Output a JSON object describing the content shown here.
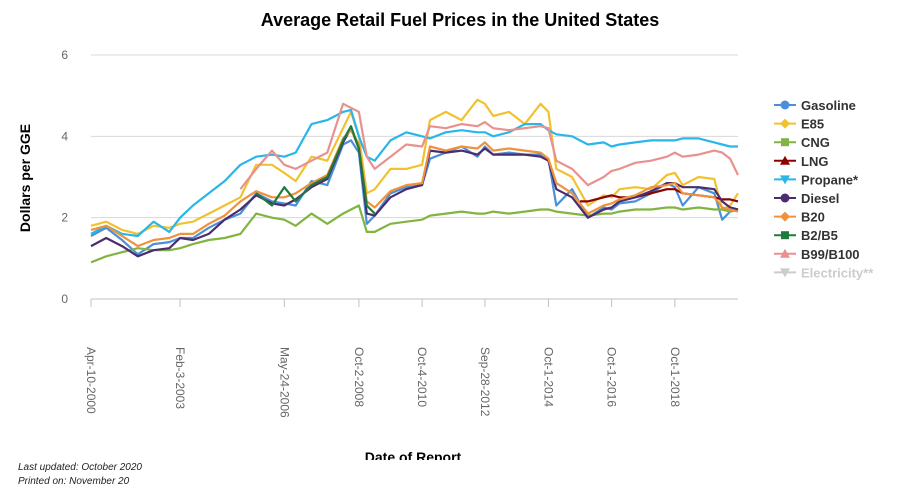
{
  "footer": {
    "updated": "Last updated: October 2020",
    "printed": "Printed on: November 20"
  },
  "chart_data": {
    "type": "line",
    "title": "Average Retail Fuel Prices in the United States",
    "xlabel": "Date of Report",
    "ylabel": "Dollars per GGE",
    "ylim": [
      0,
      6
    ],
    "xlim": [
      2000.27,
      2020.75
    ],
    "yticks": [
      "0",
      "2",
      "4",
      "6"
    ],
    "xticks": [
      {
        "label": "Apr-10-2000",
        "x": 2000.27
      },
      {
        "label": "Feb-3-2003",
        "x": 2003.09
      },
      {
        "label": "May-24-2006",
        "x": 2006.39
      },
      {
        "label": "Oct-2-2008",
        "x": 2008.75
      },
      {
        "label": "Oct-4-2010",
        "x": 2010.75
      },
      {
        "label": "Sep-28-2012",
        "x": 2012.74
      },
      {
        "label": "Oct-1-2014",
        "x": 2014.75
      },
      {
        "label": "Oct-1-2016",
        "x": 2016.75
      },
      {
        "label": "Oct-1-2018",
        "x": 2018.75
      }
    ],
    "grid": true,
    "legend_position": "right",
    "series": [
      {
        "name": "Gasoline",
        "color": "#4a90d9",
        "marker": "circle",
        "x": [
          2000.27,
          2000.75,
          2001.25,
          2001.75,
          2002.25,
          2002.75,
          2003.09,
          2003.5,
          2004.0,
          2004.5,
          2005.0,
          2005.5,
          2006.0,
          2006.39,
          2006.75,
          2007.25,
          2007.75,
          2008.25,
          2008.5,
          2008.75,
          2009.0,
          2009.25,
          2009.75,
          2010.25,
          2010.75,
          2011.0,
          2011.5,
          2012.0,
          2012.5,
          2012.74,
          2013.0,
          2013.5,
          2014.0,
          2014.5,
          2014.75,
          2015.0,
          2015.5,
          2016.0,
          2016.5,
          2016.75,
          2017.0,
          2017.5,
          2018.0,
          2018.5,
          2018.75,
          2019.0,
          2019.5,
          2020.0,
          2020.25,
          2020.5,
          2020.75
        ],
        "y": [
          1.55,
          1.75,
          1.45,
          1.1,
          1.35,
          1.4,
          1.5,
          1.5,
          1.75,
          1.95,
          2.1,
          2.6,
          2.4,
          2.35,
          2.3,
          2.9,
          2.8,
          3.8,
          3.9,
          3.6,
          1.85,
          2.05,
          2.6,
          2.75,
          2.8,
          3.45,
          3.6,
          3.75,
          3.5,
          3.75,
          3.55,
          3.6,
          3.55,
          3.55,
          3.45,
          2.3,
          2.7,
          2.0,
          2.25,
          2.2,
          2.35,
          2.4,
          2.6,
          2.85,
          2.75,
          2.3,
          2.75,
          2.6,
          1.95,
          2.15,
          2.2
        ]
      },
      {
        "name": "E85",
        "color": "#f2c12e",
        "marker": "diamond",
        "x": [
          2000.27,
          2000.75,
          2001.25,
          2001.75,
          2002.25,
          2002.75,
          2003.09,
          2003.5,
          2004.0,
          2004.5,
          2005.0,
          2005.5,
          2006.0,
          2006.39,
          2006.75,
          2007.25,
          2007.75,
          2008.25,
          2008.5,
          2008.75,
          2009.0,
          2009.25,
          2009.75,
          2010.25,
          2010.75,
          2011.0,
          2011.5,
          2012.0,
          2012.5,
          2012.74,
          2013.0,
          2013.5,
          2014.0,
          2014.5,
          2014.75,
          2015.0,
          2015.5,
          2016.0,
          2016.5,
          2016.75,
          2017.0,
          2017.5,
          2018.0,
          2018.5,
          2018.75,
          2019.0,
          2019.5,
          2020.0,
          2020.25,
          2020.5,
          2020.75
        ],
        "y": [
          1.8,
          1.9,
          1.7,
          1.6,
          1.8,
          1.75,
          1.85,
          1.9,
          2.1,
          2.3,
          2.5,
          3.3,
          3.3,
          3.1,
          2.9,
          3.5,
          3.4,
          4.2,
          4.6,
          4.0,
          2.6,
          2.7,
          3.2,
          3.2,
          3.3,
          4.4,
          4.6,
          4.4,
          4.9,
          4.8,
          4.5,
          4.6,
          4.3,
          4.8,
          4.6,
          3.2,
          3.0,
          2.3,
          2.55,
          2.5,
          2.7,
          2.75,
          2.7,
          3.05,
          3.1,
          2.8,
          3.0,
          2.95,
          2.2,
          2.3,
          2.6
        ]
      },
      {
        "name": "CNG",
        "color": "#82b441",
        "marker": "square",
        "x": [
          2000.27,
          2000.75,
          2001.25,
          2001.75,
          2002.25,
          2002.75,
          2003.09,
          2003.5,
          2004.0,
          2004.5,
          2005.0,
          2005.5,
          2006.0,
          2006.39,
          2006.75,
          2007.25,
          2007.75,
          2008.25,
          2008.5,
          2008.75,
          2009.0,
          2009.25,
          2009.75,
          2010.25,
          2010.75,
          2011.0,
          2011.5,
          2012.0,
          2012.5,
          2012.74,
          2013.0,
          2013.5,
          2014.0,
          2014.5,
          2014.75,
          2015.0,
          2015.5,
          2016.0,
          2016.5,
          2016.75,
          2017.0,
          2017.5,
          2018.0,
          2018.5,
          2018.75,
          2019.0,
          2019.5,
          2020.0,
          2020.25,
          2020.5,
          2020.75
        ],
        "y": [
          0.9,
          1.05,
          1.15,
          1.25,
          1.2,
          1.2,
          1.25,
          1.35,
          1.45,
          1.5,
          1.6,
          2.1,
          2.0,
          1.95,
          1.8,
          2.1,
          1.85,
          2.1,
          2.2,
          2.3,
          1.65,
          1.65,
          1.85,
          1.9,
          1.95,
          2.05,
          2.1,
          2.15,
          2.1,
          2.1,
          2.15,
          2.1,
          2.15,
          2.2,
          2.2,
          2.15,
          2.1,
          2.05,
          2.1,
          2.1,
          2.15,
          2.2,
          2.2,
          2.25,
          2.25,
          2.2,
          2.25,
          2.2,
          2.2,
          2.15,
          2.2
        ]
      },
      {
        "name": "LNG",
        "color": "#8b0000",
        "marker": "triangle",
        "x": [
          2015.75,
          2016.0,
          2016.5,
          2016.75,
          2017.0,
          2017.5,
          2018.0,
          2018.5,
          2018.75,
          2019.0,
          2019.5,
          2020.0,
          2020.25,
          2020.5,
          2020.75
        ],
        "y": [
          2.4,
          2.4,
          2.5,
          2.55,
          2.5,
          2.5,
          2.6,
          2.7,
          2.7,
          2.6,
          2.55,
          2.5,
          2.45,
          2.45,
          2.4
        ]
      },
      {
        "name": "Propane*",
        "color": "#29b6e8",
        "marker": "triangle-down",
        "x": [
          2000.27,
          2000.75,
          2001.25,
          2001.75,
          2002.25,
          2002.75,
          2003.09,
          2003.5,
          2004.0,
          2004.5,
          2005.0,
          2005.5,
          2006.0,
          2006.39,
          2006.75,
          2007.25,
          2007.75,
          2008.25,
          2008.5,
          2008.75,
          2009.0,
          2009.25,
          2009.75,
          2010.25,
          2010.75,
          2011.0,
          2011.5,
          2012.0,
          2012.5,
          2012.74,
          2013.0,
          2013.5,
          2014.0,
          2014.5,
          2014.75,
          2015.0,
          2015.5,
          2016.0,
          2016.5,
          2016.75,
          2017.0,
          2017.5,
          2018.0,
          2018.5,
          2018.75,
          2019.0,
          2019.5,
          2020.0,
          2020.25,
          2020.5,
          2020.75
        ],
        "y": [
          1.6,
          1.8,
          1.6,
          1.55,
          1.9,
          1.65,
          2.0,
          2.3,
          2.6,
          2.9,
          3.3,
          3.5,
          3.55,
          3.5,
          3.6,
          4.3,
          4.4,
          4.6,
          4.65,
          4.0,
          3.5,
          3.4,
          3.9,
          4.1,
          4.0,
          3.95,
          4.1,
          4.15,
          4.1,
          4.1,
          4.0,
          4.1,
          4.3,
          4.3,
          4.15,
          4.05,
          4.0,
          3.8,
          3.85,
          3.75,
          3.8,
          3.85,
          3.9,
          3.9,
          3.9,
          3.95,
          3.95,
          3.85,
          3.8,
          3.75,
          3.75
        ]
      },
      {
        "name": "Diesel",
        "color": "#4b2c6f",
        "marker": "circle",
        "x": [
          2000.27,
          2000.75,
          2001.25,
          2001.75,
          2002.25,
          2002.75,
          2003.09,
          2003.5,
          2004.0,
          2004.5,
          2005.0,
          2005.5,
          2006.0,
          2006.39,
          2006.75,
          2007.25,
          2007.75,
          2008.25,
          2008.5,
          2008.75,
          2009.0,
          2009.25,
          2009.75,
          2010.25,
          2010.75,
          2011.0,
          2011.5,
          2012.0,
          2012.5,
          2012.74,
          2013.0,
          2013.5,
          2014.0,
          2014.5,
          2014.75,
          2015.0,
          2015.5,
          2016.0,
          2016.5,
          2016.75,
          2017.0,
          2017.5,
          2018.0,
          2018.5,
          2018.75,
          2019.0,
          2019.5,
          2020.0,
          2020.25,
          2020.5,
          2020.75
        ],
        "y": [
          1.3,
          1.5,
          1.3,
          1.05,
          1.2,
          1.25,
          1.5,
          1.45,
          1.6,
          1.95,
          2.2,
          2.55,
          2.35,
          2.3,
          2.45,
          2.75,
          2.95,
          3.85,
          4.2,
          3.7,
          2.1,
          2.05,
          2.5,
          2.7,
          2.8,
          3.65,
          3.6,
          3.65,
          3.55,
          3.7,
          3.55,
          3.55,
          3.55,
          3.5,
          3.4,
          2.7,
          2.5,
          2.0,
          2.2,
          2.25,
          2.4,
          2.5,
          2.65,
          2.85,
          2.85,
          2.75,
          2.75,
          2.7,
          2.4,
          2.25,
          2.2
        ]
      },
      {
        "name": "B20",
        "color": "#f0923c",
        "marker": "diamond",
        "x": [
          2000.27,
          2000.75,
          2001.25,
          2001.75,
          2002.25,
          2002.75,
          2003.09,
          2003.5,
          2004.0,
          2004.5,
          2005.0,
          2005.5,
          2006.0,
          2006.39,
          2006.75,
          2007.25,
          2007.75,
          2008.25,
          2008.5,
          2008.75,
          2009.0,
          2009.25,
          2009.75,
          2010.25,
          2010.75,
          2011.0,
          2011.5,
          2012.0,
          2012.5,
          2012.74,
          2013.0,
          2013.5,
          2014.0,
          2014.5,
          2014.75,
          2015.0,
          2015.5,
          2016.0,
          2016.5,
          2016.75,
          2017.0,
          2017.5,
          2018.0,
          2018.5,
          2018.75,
          2019.0,
          2019.5,
          2020.0,
          2020.25,
          2020.5,
          2020.75
        ],
        "y": [
          1.7,
          1.8,
          1.55,
          1.3,
          1.45,
          1.5,
          1.6,
          1.6,
          1.85,
          2.05,
          2.4,
          2.65,
          2.5,
          2.5,
          2.6,
          2.85,
          3.05,
          3.95,
          4.15,
          3.8,
          2.4,
          2.25,
          2.65,
          2.8,
          2.85,
          3.75,
          3.65,
          3.75,
          3.7,
          3.85,
          3.65,
          3.7,
          3.65,
          3.6,
          3.45,
          2.85,
          2.6,
          2.1,
          2.3,
          2.35,
          2.45,
          2.55,
          2.75,
          2.8,
          2.85,
          2.6,
          2.55,
          2.5,
          2.25,
          2.2,
          2.15
        ]
      },
      {
        "name": "B2/B5",
        "color": "#1e7b3c",
        "marker": "square",
        "x": [
          2005.5,
          2006.0,
          2006.39,
          2006.75,
          2007.25,
          2007.75,
          2008.25,
          2008.5,
          2008.75,
          2009.0,
          2009.25
        ],
        "y": [
          2.6,
          2.3,
          2.75,
          2.4,
          2.8,
          3.0,
          3.9,
          4.25,
          3.7,
          2.3,
          2.1
        ]
      },
      {
        "name": "B99/B100",
        "color": "#e8918f",
        "marker": "triangle",
        "x": [
          2000.27,
          2000.75,
          2001.25,
          2001.75,
          2002.25,
          2002.75,
          2003.09,
          2003.5,
          2004.0,
          2004.5,
          2005.0,
          2005.5,
          2006.0,
          2006.39,
          2006.75,
          2007.25,
          2007.75,
          2008.25,
          2008.5,
          2008.75,
          2009.0,
          2009.25,
          2009.75,
          2010.25,
          2010.75,
          2011.0,
          2011.5,
          2012.0,
          2012.5,
          2012.74,
          2013.0,
          2013.5,
          2014.0,
          2014.5,
          2014.75,
          2015.0,
          2015.5,
          2016.0,
          2016.5,
          2016.75,
          2017.0,
          2017.5,
          2018.0,
          2018.5,
          2018.75,
          2019.0,
          2019.5,
          2020.0,
          2020.25,
          2020.5,
          2020.75
        ],
        "y": [
          null,
          null,
          null,
          null,
          null,
          null,
          null,
          null,
          null,
          null,
          2.7,
          3.2,
          3.65,
          3.3,
          3.2,
          3.4,
          3.6,
          4.8,
          4.7,
          4.6,
          3.5,
          3.2,
          3.5,
          3.8,
          3.75,
          4.25,
          4.2,
          4.3,
          4.25,
          4.35,
          4.2,
          4.15,
          4.2,
          4.25,
          4.2,
          3.4,
          3.2,
          2.8,
          3.0,
          3.15,
          3.2,
          3.35,
          3.4,
          3.5,
          3.6,
          3.5,
          3.55,
          3.65,
          3.6,
          3.45,
          3.05
        ]
      },
      {
        "name": "Electricity**",
        "color": "#cccccc",
        "marker": "triangle-down",
        "hidden": true,
        "x": [],
        "y": []
      }
    ]
  }
}
